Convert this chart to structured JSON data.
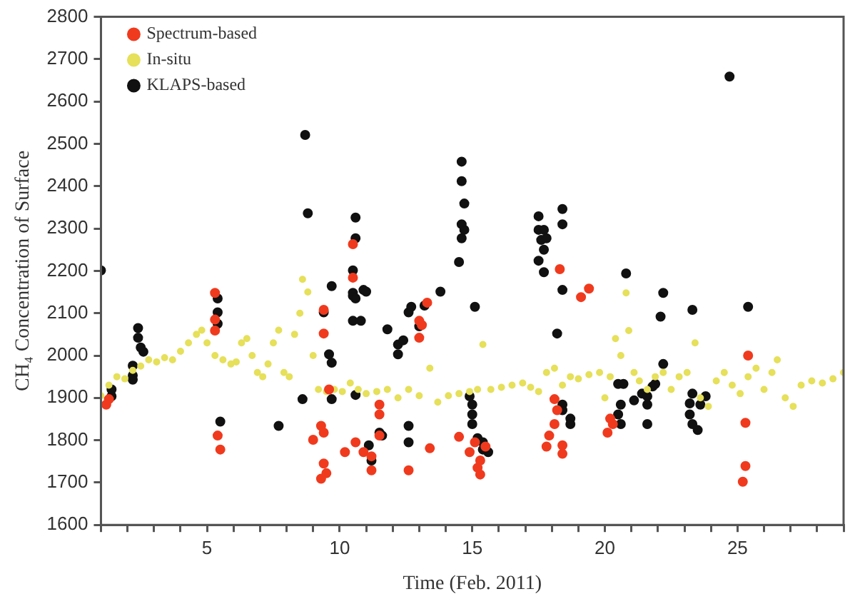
{
  "chart_data": {
    "type": "scatter",
    "xlabel": "Time (Feb. 2011)",
    "ylabel": "CH₄ Concentration of Surface",
    "xlim": [
      1,
      29
    ],
    "ylim": [
      1600,
      2800
    ],
    "xticks": [
      {
        "value": 1,
        "label": null
      },
      {
        "value": 2,
        "label": null
      },
      {
        "value": 3,
        "label": null
      },
      {
        "value": 4,
        "label": null
      },
      5,
      {
        "value": 6,
        "label": null
      },
      {
        "value": 7,
        "label": null
      },
      {
        "value": 8,
        "label": null
      },
      {
        "value": 9,
        "label": null
      },
      10,
      {
        "value": 11,
        "label": null
      },
      {
        "value": 12,
        "label": null
      },
      {
        "value": 13,
        "label": null
      },
      {
        "value": 14,
        "label": null
      },
      15,
      {
        "value": 16,
        "label": null
      },
      {
        "value": 17,
        "label": null
      },
      {
        "value": 18,
        "label": null
      },
      {
        "value": 19,
        "label": null
      },
      20,
      {
        "value": 21,
        "label": null
      },
      {
        "value": 22,
        "label": null
      },
      {
        "value": 23,
        "label": null
      },
      {
        "value": 24,
        "label": null
      },
      25,
      {
        "value": 26,
        "label": null
      },
      {
        "value": 27,
        "label": null
      },
      {
        "value": 28,
        "label": null
      },
      {
        "value": 29,
        "label": null
      }
    ],
    "yticks": [
      1600,
      1700,
      1800,
      1900,
      2000,
      2100,
      2200,
      2300,
      2400,
      2500,
      2600,
      2700,
      2800
    ],
    "grid": false,
    "legend": "top left",
    "marker": "circle",
    "series": [
      {
        "name": "Spectrum-based",
        "color": "#f03a1e",
        "x": [
          1.2,
          1.3,
          5.3,
          5.3,
          5.3,
          5.4,
          5.5,
          9.4,
          9.4,
          9.3,
          9.0,
          9.4,
          9.5,
          9.3,
          9.6,
          9.4,
          10.5,
          10.5,
          10.2,
          10.6,
          10.9,
          11.2,
          11.5,
          11.5,
          11.5,
          11.2,
          12.6,
          13.3,
          13.0,
          13.1,
          13.0,
          13.4,
          14.5,
          14.9,
          15.3,
          15.3,
          15.5,
          15.2,
          15.1,
          18.1,
          18.1,
          17.9,
          17.8,
          18.4,
          18.4,
          18.2,
          18.3,
          19.1,
          19.4,
          20.2,
          20.1,
          20.3,
          25.4,
          25.3,
          25.3,
          25.2
        ],
        "values": [
          1884,
          1897,
          2148,
          2085,
          2059,
          1811,
          1778,
          2108,
          2052,
          1834,
          1801,
          1745,
          1722,
          1709,
          1920,
          1818,
          2263,
          2184,
          1772,
          1795,
          1772,
          1762,
          1861,
          1884,
          1811,
          1729,
          1729,
          2125,
          2082,
          2072,
          2042,
          1781,
          1808,
          1772,
          1752,
          1719,
          1785,
          1735,
          1795,
          1897,
          1838,
          1811,
          1785,
          1788,
          1768,
          1871,
          2204,
          2138,
          2158,
          1851,
          1818,
          1838,
          2000,
          1841,
          1739,
          1702
        ]
      },
      {
        "name": "In-situ",
        "color": "#e6e05a",
        "x": [
          1.0,
          1.3,
          1.6,
          1.9,
          2.2,
          2.5,
          2.8,
          3.1,
          3.4,
          3.7,
          4.0,
          4.3,
          4.6,
          4.8,
          5.0,
          5.3,
          5.6,
          5.9,
          6.1,
          6.3,
          6.5,
          6.7,
          6.9,
          7.1,
          7.3,
          7.5,
          7.7,
          7.9,
          8.1,
          8.3,
          8.5,
          8.6,
          8.8,
          9.0,
          9.2,
          9.5,
          9.8,
          10.1,
          10.4,
          10.7,
          11.0,
          11.4,
          11.8,
          12.2,
          12.6,
          13.0,
          13.4,
          13.7,
          14.1,
          14.5,
          14.9,
          15.2,
          15.4,
          15.7,
          16.1,
          16.5,
          16.9,
          17.2,
          17.5,
          17.8,
          18.1,
          18.4,
          18.7,
          19.0,
          19.4,
          19.8,
          20.0,
          20.2,
          20.4,
          20.6,
          20.8,
          20.9,
          21.1,
          21.3,
          21.6,
          21.9,
          22.2,
          22.5,
          22.8,
          23.1,
          23.4,
          23.6,
          23.9,
          24.2,
          24.5,
          24.8,
          25.1,
          25.4,
          25.7,
          26.0,
          26.3,
          26.5,
          26.8,
          27.1,
          27.4,
          27.8,
          28.2,
          28.6,
          29.0
        ],
        "values": [
          1905,
          1930,
          1950,
          1945,
          1965,
          1975,
          1990,
          1985,
          1995,
          1990,
          2010,
          2030,
          2050,
          2060,
          2030,
          2000,
          1990,
          1980,
          1985,
          2030,
          2040,
          2000,
          1960,
          1950,
          1980,
          2030,
          2060,
          1960,
          1950,
          2050,
          2100,
          2180,
          2150,
          2000,
          1920,
          1915,
          1920,
          1915,
          1935,
          1920,
          1910,
          1915,
          1920,
          1900,
          1920,
          1905,
          1970,
          1890,
          1905,
          1910,
          1915,
          1920,
          2026,
          1920,
          1925,
          1930,
          1935,
          1925,
          1915,
          1960,
          1970,
          1930,
          1950,
          1945,
          1955,
          1960,
          1900,
          1950,
          2040,
          2000,
          2148,
          2059,
          1960,
          1940,
          1920,
          1950,
          1960,
          1920,
          1950,
          1960,
          2030,
          1900,
          1880,
          1940,
          1960,
          1930,
          1910,
          1950,
          1970,
          1920,
          1960,
          1990,
          1900,
          1880,
          1930,
          1940,
          1935,
          1945,
          1960
        ]
      },
      {
        "name": "KLAPS-based",
        "color": "#111111",
        "x": [
          1.0,
          1.4,
          1.4,
          2.2,
          2.2,
          2.2,
          2.4,
          2.4,
          2.5,
          2.6,
          5.4,
          5.4,
          5.4,
          5.5,
          7.7,
          8.6,
          8.7,
          8.8,
          9.4,
          9.7,
          9.6,
          9.7,
          9.7,
          10.6,
          10.6,
          10.5,
          10.5,
          10.9,
          10.5,
          10.6,
          11.0,
          10.5,
          10.8,
          10.6,
          11.1,
          11.2,
          11.5,
          11.6,
          11.8,
          12.6,
          12.6,
          12.2,
          12.2,
          12.4,
          12.6,
          12.7,
          13.0,
          13.2,
          13.8,
          14.6,
          14.6,
          14.7,
          14.6,
          14.7,
          14.6,
          14.5,
          15.1,
          14.9,
          15.0,
          15.0,
          15.0,
          15.2,
          15.4,
          15.4,
          15.6,
          17.5,
          17.5,
          17.7,
          17.6,
          17.8,
          17.7,
          17.5,
          17.7,
          18.4,
          18.4,
          18.4,
          18.2,
          18.4,
          18.4,
          18.7,
          18.7,
          20.8,
          20.5,
          20.7,
          20.6,
          20.5,
          20.6,
          21.1,
          21.4,
          21.6,
          21.6,
          21.8,
          21.9,
          21.6,
          22.2,
          22.1,
          22.2,
          23.3,
          23.3,
          23.2,
          23.6,
          23.8,
          23.2,
          23.3,
          23.5,
          24.7,
          25.4
        ],
        "values": [
          2201,
          1920,
          1904,
          1976,
          1953,
          1943,
          2065,
          2042,
          2019,
          2009,
          2135,
          2102,
          2075,
          1844,
          1834,
          1897,
          2521,
          2336,
          2102,
          2164,
          2003,
          1983,
          1897,
          2326,
          2277,
          2201,
          2148,
          2155,
          2141,
          2135,
          2151,
          2082,
          2082,
          1907,
          1788,
          1752,
          1818,
          1811,
          2062,
          1834,
          1795,
          2026,
          2003,
          2036,
          2102,
          2115,
          2069,
          2118,
          2151,
          2458,
          2412,
          2359,
          2310,
          2297,
          2277,
          2221,
          2115,
          1904,
          1884,
          1861,
          1838,
          1805,
          1795,
          1778,
          1772,
          2329,
          2297,
          2297,
          2273,
          2277,
          2250,
          2224,
          2197,
          2346,
          2310,
          2155,
          2052,
          1884,
          1871,
          1851,
          1838,
          2194,
          1933,
          1933,
          1884,
          1861,
          1838,
          1894,
          1910,
          1904,
          1884,
          1927,
          1933,
          1838,
          2148,
          2092,
          1980,
          2108,
          1910,
          1887,
          1884,
          1904,
          1861,
          1838,
          1824,
          2659,
          2115
        ]
      }
    ]
  }
}
